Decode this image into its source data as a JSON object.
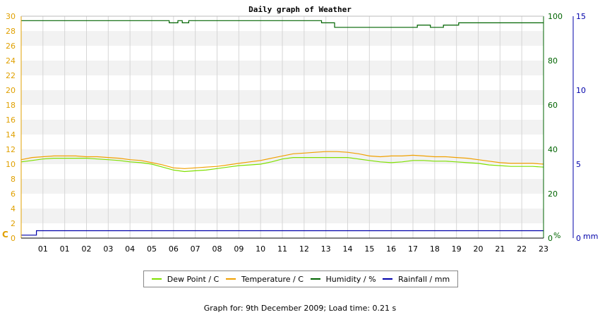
{
  "chart_data": {
    "type": "line",
    "title": "Daily graph of Weather",
    "x_ticks": [
      "01",
      "01",
      "02",
      "03",
      "04",
      "05",
      "06",
      "07",
      "08",
      "09",
      "10",
      "11",
      "12",
      "13",
      "14",
      "15",
      "16",
      "17",
      "18",
      "19",
      "20",
      "21",
      "22",
      "23"
    ],
    "y_left": {
      "unit": "C",
      "ticks": [
        "0",
        "2",
        "4",
        "6",
        "8",
        "10",
        "12",
        "14",
        "16",
        "18",
        "20",
        "22",
        "24",
        "26",
        "28",
        "30"
      ],
      "range": [
        0,
        30
      ]
    },
    "y_right_humidity": {
      "unit": "%",
      "ticks": [
        "0",
        "20",
        "40",
        "60",
        "80",
        "100"
      ],
      "range": [
        0,
        100
      ]
    },
    "y_right_rain": {
      "unit": "mm",
      "ticks": [
        "0",
        "5",
        "10",
        "15"
      ],
      "range": [
        0,
        15
      ]
    },
    "series": [
      {
        "name": "Dew Point / C",
        "axis": "left",
        "color": "#7fe000",
        "x": [
          0,
          0.5,
          1,
          1.5,
          2,
          2.5,
          3,
          3.5,
          4,
          4.5,
          5,
          5.5,
          6,
          6.5,
          7,
          7.5,
          8,
          8.5,
          9,
          9.5,
          10,
          10.5,
          11,
          11.5,
          12,
          12.5,
          13,
          13.5,
          14,
          14.5,
          15,
          15.5,
          16,
          16.5,
          17,
          17.5,
          18,
          18.5,
          19,
          19.5,
          20,
          20.5,
          21,
          21.5,
          22,
          22.5,
          23,
          23.5,
          24
        ],
        "values": [
          10.3,
          10.5,
          10.7,
          10.8,
          10.8,
          10.8,
          10.8,
          10.7,
          10.6,
          10.5,
          10.3,
          10.2,
          10.0,
          9.6,
          9.2,
          9.0,
          9.1,
          9.2,
          9.4,
          9.6,
          9.8,
          9.9,
          10.0,
          10.3,
          10.7,
          10.9,
          10.9,
          10.9,
          10.9,
          10.9,
          10.9,
          10.7,
          10.5,
          10.3,
          10.2,
          10.3,
          10.5,
          10.5,
          10.4,
          10.4,
          10.3,
          10.2,
          10.1,
          9.9,
          9.8,
          9.7,
          9.7,
          9.7,
          9.6
        ]
      },
      {
        "name": "Temperature / C",
        "axis": "left",
        "color": "#f0a000",
        "x": [
          0,
          0.5,
          1,
          1.5,
          2,
          2.5,
          3,
          3.5,
          4,
          4.5,
          5,
          5.5,
          6,
          6.5,
          7,
          7.5,
          8,
          8.5,
          9,
          9.5,
          10,
          10.5,
          11,
          11.5,
          12,
          12.5,
          13,
          13.5,
          14,
          14.5,
          15,
          15.5,
          16,
          16.5,
          17,
          17.5,
          18,
          18.5,
          19,
          19.5,
          20,
          20.5,
          21,
          21.5,
          22,
          22.5,
          23,
          23.5,
          24
        ],
        "values": [
          10.6,
          10.9,
          11.0,
          11.1,
          11.1,
          11.1,
          11.0,
          11.0,
          10.9,
          10.8,
          10.6,
          10.5,
          10.2,
          9.9,
          9.5,
          9.4,
          9.5,
          9.6,
          9.7,
          9.9,
          10.1,
          10.3,
          10.5,
          10.8,
          11.1,
          11.4,
          11.5,
          11.6,
          11.7,
          11.7,
          11.6,
          11.4,
          11.1,
          11.0,
          11.1,
          11.1,
          11.2,
          11.1,
          11.0,
          11.0,
          10.9,
          10.8,
          10.6,
          10.4,
          10.2,
          10.1,
          10.1,
          10.1,
          10.0
        ]
      },
      {
        "name": "Humidity / %",
        "axis": "right_humidity",
        "color": "#006400",
        "x": [
          0,
          4,
          6.8,
          6.8,
          7.2,
          7.2,
          7.4,
          7.4,
          7.7,
          7.7,
          13.8,
          13.8,
          14.4,
          14.4,
          15.1,
          15.1,
          18.2,
          18.2,
          18.8,
          18.8,
          19.4,
          19.4,
          20.1,
          20.1,
          24
        ],
        "values": [
          98,
          98,
          98,
          97,
          97,
          98,
          98,
          97,
          97,
          98,
          98,
          97,
          97,
          95,
          95,
          95,
          95,
          96,
          96,
          95,
          95,
          96,
          96,
          97,
          97
        ]
      },
      {
        "name": "Rainfall / mm",
        "axis": "right_rain",
        "color": "#0000aa",
        "x": [
          0,
          0.7,
          0.7,
          24
        ],
        "values": [
          0.2,
          0.2,
          0.5,
          0.5
        ]
      }
    ],
    "grid": true,
    "legend_position": "bottom"
  },
  "footer": "Graph for: 9th December 2009; Load time: 0.21 s"
}
